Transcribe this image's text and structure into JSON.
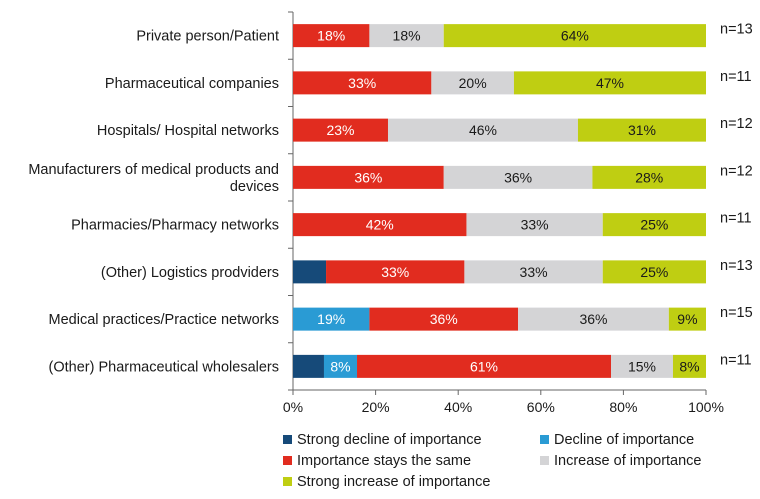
{
  "chart_data": {
    "type": "bar",
    "orientation": "horizontal",
    "stacked": true,
    "title": "",
    "xlabel": "",
    "ylabel": "",
    "xlim": [
      0,
      100
    ],
    "x_ticks": [
      "0%",
      "20%",
      "40%",
      "60%",
      "80%",
      "100%"
    ],
    "categories": [
      "Private person/Patient",
      "Pharmaceutical companies",
      "Hospitals/ Hospital networks",
      "Manufacturers of medical products and devices",
      "Pharmacies/Pharmacy networks",
      "(Other) Logistics prodviders",
      "Medical practices/Practice networks",
      "(Other) Pharmaceutical wholesalers"
    ],
    "category_lines": [
      [
        "Private person/Patient"
      ],
      [
        "Pharmaceutical companies"
      ],
      [
        "Hospitals/ Hospital networks"
      ],
      [
        "Manufacturers of medical products and",
        "devices"
      ],
      [
        "Pharmacies/Pharmacy networks"
      ],
      [
        "(Other) Logistics prodviders"
      ],
      [
        "Medical practices/Practice networks"
      ],
      [
        "(Other) Pharmaceutical wholesalers"
      ]
    ],
    "n_labels": [
      "n=13",
      "n=11",
      "n=12",
      "n=12",
      "n=11",
      "n=13",
      "n=15",
      "n=11"
    ],
    "series": [
      {
        "name": "Strong decline of importance",
        "color": "#164a79",
        "values": [
          0,
          0,
          0,
          0,
          0,
          8,
          0,
          7.5
        ],
        "labels": [
          "",
          "",
          "",
          "",
          "",
          "",
          "",
          ""
        ]
      },
      {
        "name": "Decline of importance",
        "color": "#2a9bd4",
        "values": [
          0,
          0,
          0,
          0,
          0,
          0,
          18.5,
          8
        ],
        "labels": [
          "",
          "",
          "",
          "",
          "",
          "",
          "19%",
          "8%"
        ]
      },
      {
        "name": "Importance stays the same",
        "color": "#e12c1f",
        "values": [
          18.5,
          33.5,
          23,
          36.5,
          42,
          33.5,
          36,
          61.5
        ],
        "labels": [
          "18%",
          "33%",
          "23%",
          "36%",
          "42%",
          "33%",
          "36%",
          "61%"
        ]
      },
      {
        "name": "Increase of importance",
        "color": "#d4d4d6",
        "values": [
          18,
          20,
          46,
          36,
          33,
          33.5,
          36.5,
          15
        ],
        "labels": [
          "18%",
          "20%",
          "46%",
          "36%",
          "33%",
          "33%",
          "36%",
          "15%"
        ]
      },
      {
        "name": "Strong increase of importance",
        "color": "#bfce12",
        "values": [
          63.5,
          46.5,
          31,
          27.5,
          25,
          25,
          9,
          8
        ],
        "labels": [
          "64%",
          "47%",
          "31%",
          "28%",
          "25%",
          "25%",
          "9%",
          "8%"
        ]
      }
    ],
    "legend_position": "bottom"
  }
}
